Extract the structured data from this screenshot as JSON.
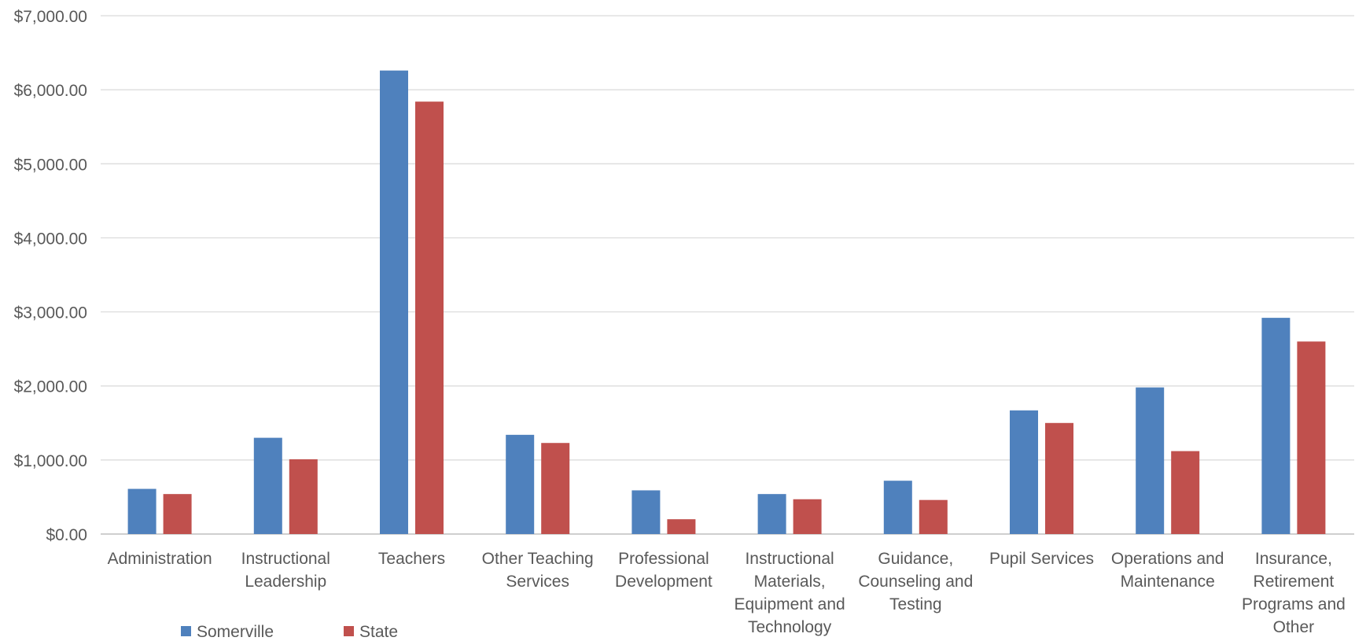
{
  "chart_data": {
    "type": "bar",
    "title": "",
    "xlabel": "",
    "ylabel": "",
    "ylim": [
      0,
      7000
    ],
    "yticks": [
      "$0.00",
      "$1,000.00",
      "$2,000.00",
      "$3,000.00",
      "$4,000.00",
      "$5,000.00",
      "$6,000.00",
      "$7,000.00"
    ],
    "grid": true,
    "legend_position": "bottom-left",
    "categories": [
      [
        "Administration"
      ],
      [
        "Instructional",
        "Leadership"
      ],
      [
        "Teachers"
      ],
      [
        "Other Teaching",
        "Services"
      ],
      [
        "Professional",
        "Development"
      ],
      [
        "Instructional",
        "Materials,",
        "Equipment and",
        "Technology"
      ],
      [
        "Guidance,",
        "Counseling and",
        "Testing"
      ],
      [
        "Pupil Services"
      ],
      [
        "Operations and",
        "Maintenance"
      ],
      [
        "Insurance,",
        "Retirement",
        "Programs and",
        "Other"
      ]
    ],
    "series": [
      {
        "name": "Somerville",
        "color": "#4F81BD",
        "values": [
          610,
          1300,
          6260,
          1340,
          590,
          540,
          720,
          1670,
          1980,
          2920
        ]
      },
      {
        "name": "State",
        "color": "#C0504D",
        "values": [
          540,
          1010,
          5840,
          1230,
          200,
          470,
          460,
          1500,
          1120,
          2600
        ]
      }
    ]
  }
}
